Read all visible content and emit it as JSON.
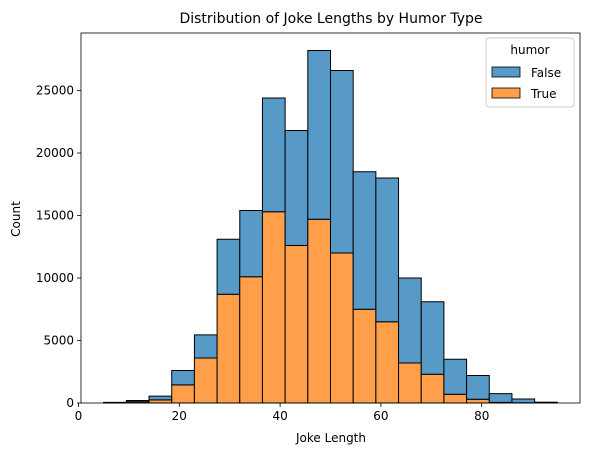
{
  "chart_data": {
    "type": "bar",
    "stacked": true,
    "title": "Distribution of Joke Lengths by Humor Type",
    "xlabel": "Joke Length",
    "ylabel": "Count",
    "xlim": [
      0.5,
      99.5
    ],
    "ylim": [
      0,
      29600
    ],
    "xticks": [
      0,
      20,
      40,
      60,
      80
    ],
    "yticks": [
      0,
      5000,
      10000,
      15000,
      20000,
      25000
    ],
    "bin_width": 4.5,
    "bin_starts": [
      5,
      9.5,
      14,
      18.5,
      23,
      27.5,
      32,
      36.5,
      41,
      45.5,
      50,
      54.5,
      59,
      63.5,
      68,
      72.5,
      77,
      81.5,
      86,
      90.5
    ],
    "legend": {
      "title": "humor",
      "placement": "upper right"
    },
    "series": [
      {
        "name": "True",
        "color": "#ff9f4a",
        "values": [
          30,
          100,
          250,
          1450,
          3600,
          8700,
          10100,
          15300,
          12600,
          14700,
          12000,
          7500,
          6500,
          3200,
          2300,
          700,
          300,
          50,
          20,
          5
        ]
      },
      {
        "name": "False",
        "color": "#5799c7",
        "values": [
          20,
          100,
          300,
          1150,
          1850,
          4400,
          5300,
          9100,
          9200,
          13500,
          14600,
          11000,
          11500,
          6800,
          5800,
          2800,
          1900,
          700,
          300,
          60
        ]
      }
    ]
  }
}
